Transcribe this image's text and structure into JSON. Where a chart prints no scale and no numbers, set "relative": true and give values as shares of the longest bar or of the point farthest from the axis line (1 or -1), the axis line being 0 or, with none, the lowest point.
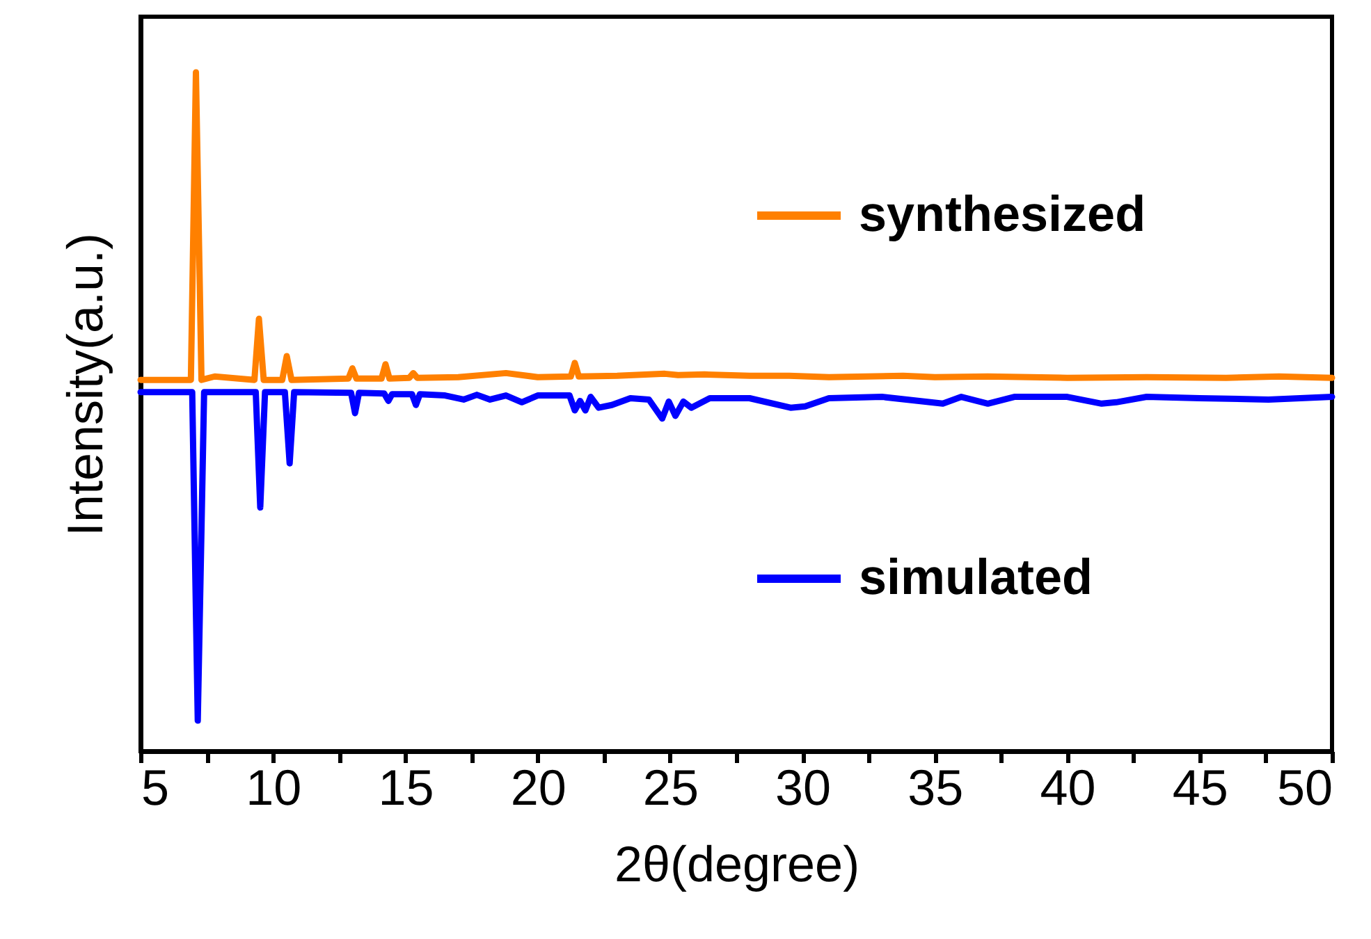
{
  "chart_data": {
    "type": "line",
    "relative": true,
    "xlabel": "2θ(degree)",
    "ylabel": "Intensity(a.u.)",
    "xlim": [
      5,
      50
    ],
    "xticks": [
      5,
      {
        "value": 7.5,
        "label": null
      },
      10,
      {
        "value": 12.5,
        "label": null
      },
      15,
      {
        "value": 17.5,
        "label": null
      },
      20,
      {
        "value": 22.5,
        "label": null
      },
      25,
      {
        "value": 27.5,
        "label": null
      },
      30,
      {
        "value": 32.5,
        "label": null
      },
      35,
      {
        "value": 37.5,
        "label": null
      },
      40,
      {
        "value": 42.5,
        "label": null
      },
      45,
      {
        "value": 47.5,
        "label": null
      },
      50
    ],
    "tick_labels": "x",
    "grid": false,
    "legend": "right",
    "marker": "none",
    "line_style": "solid",
    "series": [
      {
        "name": "synthesized",
        "color": "#ff8000",
        "x": [
          5,
          6.9,
          7.09,
          7.3,
          7.8,
          9.3,
          9.47,
          9.65,
          10.35,
          10.52,
          10.7,
          12.85,
          13.0,
          13.15,
          14.1,
          14.25,
          14.4,
          15.15,
          15.3,
          15.45,
          17,
          18.8,
          20,
          21.25,
          21.4,
          21.55,
          23,
          24.8,
          25.3,
          26.3,
          28,
          29.5,
          31,
          33.8,
          35,
          37,
          40,
          43,
          46,
          48,
          50
        ],
        "values": [
          0.547,
          0.547,
          1.0,
          0.547,
          0.552,
          0.547,
          0.637,
          0.547,
          0.547,
          0.582,
          0.547,
          0.549,
          0.564,
          0.549,
          0.549,
          0.57,
          0.549,
          0.55,
          0.557,
          0.55,
          0.551,
          0.557,
          0.551,
          0.552,
          0.572,
          0.552,
          0.553,
          0.556,
          0.554,
          0.555,
          0.553,
          0.553,
          0.551,
          0.553,
          0.551,
          0.552,
          0.55,
          0.551,
          0.55,
          0.552,
          0.55
        ]
      },
      {
        "name": "simulated",
        "color": "#0000ff",
        "x": [
          5,
          6.95,
          7.16,
          7.4,
          9.35,
          9.52,
          9.7,
          10.45,
          10.63,
          10.8,
          12.95,
          13.1,
          13.25,
          14.2,
          14.36,
          14.5,
          15.25,
          15.4,
          15.55,
          16.5,
          17.2,
          17.7,
          18.2,
          18.8,
          19.4,
          20,
          21.2,
          21.4,
          21.6,
          21.8,
          22.0,
          22.3,
          22.8,
          23.5,
          24.2,
          24.7,
          24.95,
          25.2,
          25.5,
          25.8,
          26.5,
          28,
          29.55,
          30.1,
          31,
          33,
          35.3,
          36,
          37.0,
          38,
          40,
          41.3,
          41.85,
          43,
          45,
          47.6,
          50
        ],
        "values": [
          0.529,
          0.529,
          0.045,
          0.529,
          0.529,
          0.359,
          0.529,
          0.529,
          0.424,
          0.529,
          0.528,
          0.498,
          0.528,
          0.527,
          0.516,
          0.526,
          0.526,
          0.51,
          0.526,
          0.524,
          0.518,
          0.525,
          0.518,
          0.524,
          0.514,
          0.524,
          0.524,
          0.502,
          0.516,
          0.502,
          0.522,
          0.506,
          0.51,
          0.52,
          0.518,
          0.49,
          0.515,
          0.494,
          0.515,
          0.506,
          0.52,
          0.52,
          0.506,
          0.508,
          0.52,
          0.522,
          0.512,
          0.522,
          0.512,
          0.522,
          0.522,
          0.512,
          0.514,
          0.522,
          0.52,
          0.518,
          0.522
        ]
      }
    ]
  }
}
